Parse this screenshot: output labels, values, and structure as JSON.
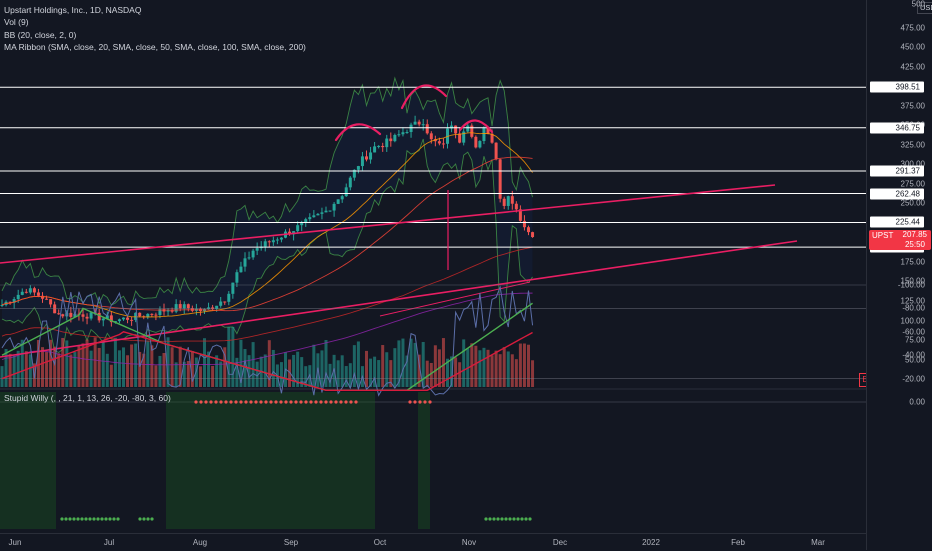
{
  "legend": {
    "title": "Upstart Holdings, Inc., 1D, NASDAQ",
    "vol": "Vol (9)",
    "bb": "BB (20, close, 2, 0)",
    "ma": "MA Ribbon (SMA, close, 20, SMA, close, 50, SMA, close, 100, SMA, close, 200)"
  },
  "oscillator_label": "Stupid Willy (, , 21, 1, 13, 26, -20, -80, 3, 60)",
  "axis": {
    "currency": "USD",
    "price_ticks": [
      "475.00",
      "450.00",
      "425.00",
      "375.00",
      "350.00",
      "325.00",
      "300.00",
      "275.00",
      "250.00",
      "175.00",
      "150.00",
      "125.00",
      "100.00",
      "75.00",
      "50.00"
    ],
    "osc_ticks": [
      "0.00",
      "-20.00",
      "-40.00",
      "-60.00",
      "-80.00",
      "-100.00"
    ],
    "time_labels": [
      "Jun",
      "Jul",
      "Aug",
      "Sep",
      "Oct",
      "Nov",
      "Dec",
      "2022",
      "Feb",
      "Mar"
    ],
    "top_clip": "500"
  },
  "horizontal_levels": [
    "398.51",
    "346.75",
    "291.37",
    "262.48",
    "225.44",
    "193.87"
  ],
  "current": {
    "symbol": "UPST",
    "price": "207.85",
    "countdown": "25:50"
  },
  "colors": {
    "background": "#131722",
    "up": "#26a69a",
    "down": "#ef5350",
    "trendline": "#e91e63",
    "level": "#ffffff"
  },
  "icons": {
    "earnings_marker": "E"
  }
}
